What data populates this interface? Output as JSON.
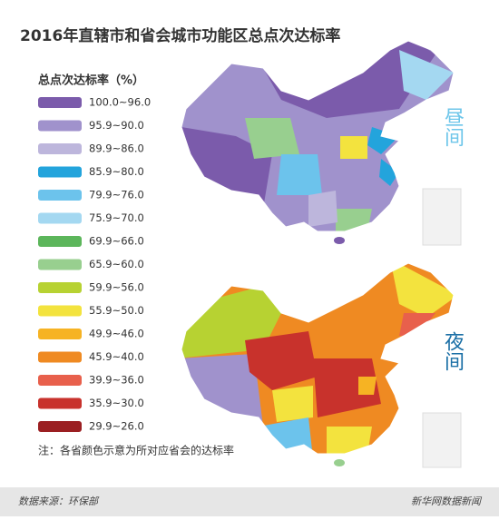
{
  "title": "2016年直辖市和省会城市功能区总点次达标率",
  "legend": {
    "title": "总点次达标率（%）",
    "items": [
      {
        "label": "100.0~96.0",
        "color": "#7b5bab"
      },
      {
        "label": "95.9~90.0",
        "color": "#a092cc"
      },
      {
        "label": "89.9~86.0",
        "color": "#bdb6dc"
      },
      {
        "label": "85.9~80.0",
        "color": "#23a4dc"
      },
      {
        "label": "79.9~76.0",
        "color": "#6cc3ec"
      },
      {
        "label": "75.9~70.0",
        "color": "#a4d8f1"
      },
      {
        "label": "69.9~66.0",
        "color": "#5cb65b"
      },
      {
        "label": "65.9~60.0",
        "color": "#98cf8f"
      },
      {
        "label": "59.9~56.0",
        "color": "#b7d232"
      },
      {
        "label": "55.9~50.0",
        "color": "#f3e33e"
      },
      {
        "label": "49.9~46.0",
        "color": "#f6b323"
      },
      {
        "label": "45.9~40.0",
        "color": "#ef8a22"
      },
      {
        "label": "39.9~36.0",
        "color": "#e8604c"
      },
      {
        "label": "35.9~30.0",
        "color": "#c8322c"
      },
      {
        "label": "29.9~26.0",
        "color": "#9b1f22"
      }
    ]
  },
  "day_label": "昼间",
  "night_label": "夜间",
  "note": "注：各省颜色示意为所对应省会的达标率",
  "footer": {
    "source": "数据来源：环保部",
    "brand": "新华网数据新闻"
  }
}
